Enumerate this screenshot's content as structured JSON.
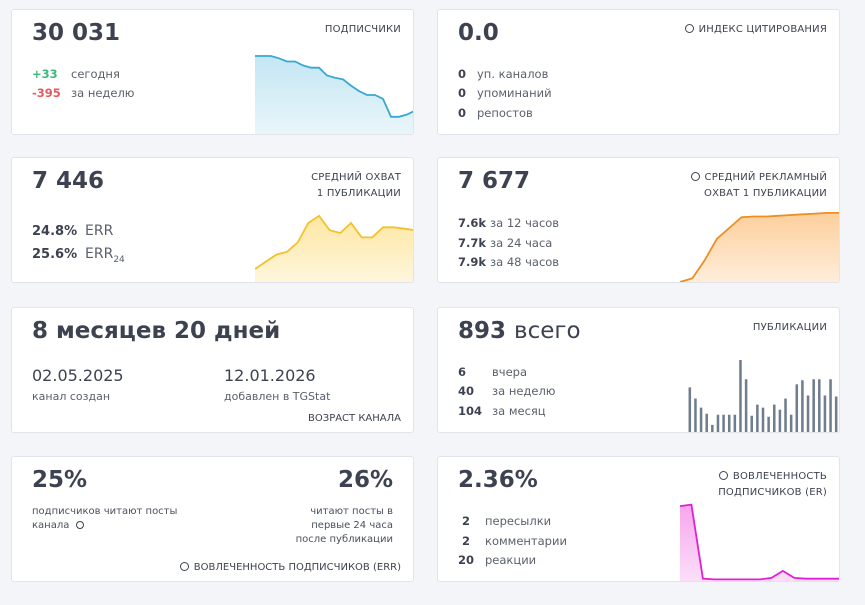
{
  "cards": [
    {
      "value": "30 031",
      "title": [
        "ПОДПИСЧИКИ"
      ],
      "stats": [
        {
          "num": "+33",
          "text": "сегодня"
        },
        {
          "num": "-395",
          "text": "за неделю"
        }
      ],
      "chart": {
        "type": "area",
        "color": "#3aa8d0",
        "fill": "#c3e6f3",
        "values": [
          100,
          100,
          100,
          97,
          93,
          93,
          88,
          85,
          85,
          75,
          72,
          70,
          62,
          55,
          50,
          50,
          45,
          22,
          22,
          25,
          30
        ]
      }
    },
    {
      "value": "0.0",
      "title": [
        "ИНДЕКС ЦИТИРОВАНИЯ"
      ],
      "stats": [
        {
          "num": "0",
          "text": "уп. каналов"
        },
        {
          "num": "0",
          "text": "упоминаний"
        },
        {
          "num": "0",
          "text": "репостов"
        }
      ]
    },
    {
      "value": "7 446",
      "title": [
        "СРЕДНИЙ ОХВАТ",
        "1 ПУБЛИКАЦИИ"
      ],
      "err": [
        {
          "num": "24.8%",
          "text": "ERR"
        },
        {
          "num": "25.6%",
          "text": "ERR",
          "sub": "24"
        }
      ],
      "chart": {
        "type": "area",
        "color": "#f3c12e",
        "fill": "#fde7a2",
        "values": [
          18,
          28,
          38,
          42,
          55,
          82,
          92,
          72,
          68,
          82,
          62,
          62,
          76,
          76,
          74,
          72
        ]
      }
    },
    {
      "value": "7 677",
      "title": [
        "СРЕДНИЙ РЕКЛАМНЫЙ",
        "ОХВАТ 1 ПУБЛИКАЦИИ"
      ],
      "stats": [
        {
          "num": "7.6k",
          "text": "за 12 часов"
        },
        {
          "num": "7.7k",
          "text": "за 24 часа"
        },
        {
          "num": "7.9k",
          "text": "за 48 часов"
        }
      ],
      "chart": {
        "type": "area",
        "color": "#ee8d24",
        "fill": "#fdcf9c",
        "values": [
          0,
          5,
          30,
          60,
          75,
          90,
          91,
          91,
          92,
          93,
          94,
          95,
          96,
          96
        ]
      }
    },
    {
      "value": "8 месяцев 20 дней",
      "dates": [
        {
          "date": "02.05.2025",
          "text": "канал создан"
        },
        {
          "date": "12.01.2026",
          "text": "добавлен в TGStat"
        }
      ],
      "footer": "ВОЗРАСТ КАНАЛА"
    },
    {
      "value": "893",
      "unit": "всего",
      "title": [
        "ПУБЛИКАЦИИ"
      ],
      "stats": [
        {
          "num": "6",
          "text": "вчера"
        },
        {
          "num": "40",
          "text": "за неделю"
        },
        {
          "num": "104",
          "text": "за месяц"
        }
      ],
      "chart": {
        "type": "bar",
        "color": "#6f7d8c",
        "values": [
          46,
          35,
          26,
          20,
          9,
          19,
          19,
          19,
          19,
          73,
          54,
          18,
          29,
          26,
          17,
          29,
          24,
          35,
          19,
          49,
          53,
          38,
          54,
          54,
          38,
          54,
          37
        ]
      }
    },
    {
      "left": {
        "value": "25%",
        "text": "подписчиков читают посты канала"
      },
      "right": {
        "value": "26%",
        "text": "читают посты в первые 24 часа после публикации"
      },
      "footer": "ВОВЛЕЧЕННОСТЬ ПОДПИСЧИКОВ (ERR)"
    },
    {
      "value": "2.36%",
      "title": [
        "ВОВЛЕЧЕННОСТЬ",
        "ПОДПИСЧИКОВ (ER)"
      ],
      "stats": [
        {
          "num": "2",
          "text": "пересылки"
        },
        {
          "num": "2",
          "text": "комментарии"
        },
        {
          "num": "20",
          "text": "реакции"
        }
      ],
      "chart": {
        "type": "area",
        "color": "#e21fd3",
        "fill": "#f6a6ec",
        "values": [
          96,
          98,
          3,
          2,
          2,
          2,
          2,
          2,
          4,
          13,
          4,
          3,
          3,
          3,
          3
        ]
      }
    }
  ]
}
